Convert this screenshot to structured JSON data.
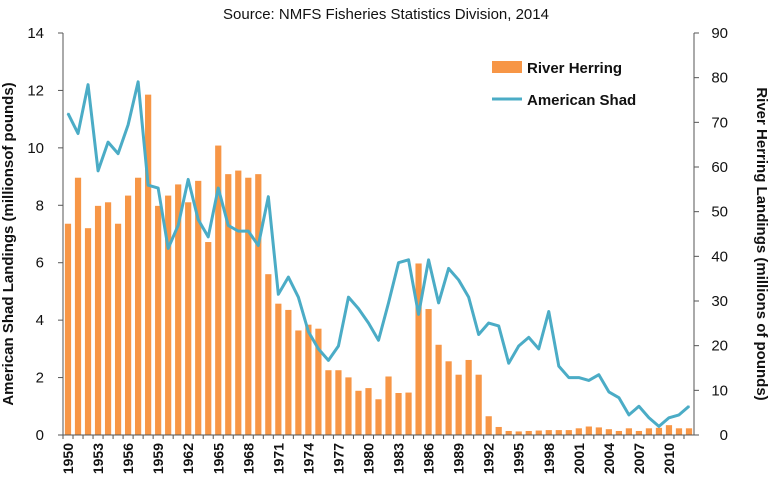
{
  "chart_data": {
    "type": "bar+line",
    "title": "Source: NMFS Fisheries Statistics Division, 2014",
    "ylabel_left": "American Shad Landings (millionsof pounds)",
    "ylabel_right": "River Herring Landings (millions of pounds)",
    "ylim_left": [
      0,
      14
    ],
    "ylim_right": [
      0,
      90
    ],
    "yticks_left": [
      "0",
      "2",
      "4",
      "6",
      "8",
      "10",
      "12",
      "14"
    ],
    "yticks_right": [
      "0",
      "10",
      "20",
      "30",
      "40",
      "50",
      "60",
      "70",
      "80",
      "90"
    ],
    "x": [
      1950,
      1951,
      1952,
      1953,
      1954,
      1955,
      1956,
      1957,
      1958,
      1959,
      1960,
      1961,
      1962,
      1963,
      1964,
      1965,
      1966,
      1967,
      1968,
      1969,
      1970,
      1971,
      1972,
      1973,
      1974,
      1975,
      1976,
      1977,
      1978,
      1979,
      1980,
      1981,
      1982,
      1983,
      1984,
      1985,
      1986,
      1987,
      1988,
      1989,
      1990,
      1991,
      1992,
      1993,
      1994,
      1995,
      1996,
      1997,
      1998,
      1999,
      2000,
      2001,
      2002,
      2003,
      2004,
      2005,
      2006,
      2007,
      2008,
      2009,
      2010,
      2011,
      2012
    ],
    "xtick_labels": [
      "1950",
      "1953",
      "1956",
      "1959",
      "1962",
      "1965",
      "1968",
      "1971",
      "1974",
      "1977",
      "1980",
      "1983",
      "1986",
      "1989",
      "1992",
      "1995",
      "1998",
      "2001",
      "2004",
      "2007",
      "2010"
    ],
    "grid": false,
    "legend": "top-right",
    "series": [
      {
        "name": "River Herring",
        "type": "bar",
        "axis": "right",
        "color": "#F79646",
        "values": [
          47.3,
          57.6,
          46.3,
          51.3,
          52.1,
          47.3,
          53.6,
          57.6,
          76.2,
          51.3,
          53.6,
          56.1,
          52.1,
          56.9,
          43.2,
          64.8,
          58.4,
          59.2,
          57.6,
          58.4,
          36.0,
          29.4,
          28.0,
          23.4,
          24.7,
          23.8,
          14.5,
          14.5,
          12.9,
          9.9,
          10.5,
          8.0,
          13.1,
          9.4,
          9.5,
          38.4,
          28.2,
          20.2,
          16.5,
          13.5,
          16.8,
          13.5,
          4.2,
          1.8,
          0.9,
          0.8,
          0.9,
          1.0,
          1.1,
          1.1,
          1.1,
          1.5,
          1.9,
          1.7,
          1.3,
          0.9,
          1.5,
          0.9,
          1.5,
          1.6,
          2.2,
          1.5,
          1.5
        ]
      },
      {
        "name": "American Shad",
        "type": "line",
        "axis": "left",
        "color": "#4BACC6",
        "values": [
          11.2,
          10.5,
          12.2,
          9.2,
          10.2,
          9.8,
          10.8,
          12.3,
          8.7,
          8.6,
          6.5,
          7.3,
          8.9,
          7.5,
          6.9,
          8.6,
          7.3,
          7.1,
          7.1,
          6.6,
          8.3,
          4.9,
          5.5,
          4.8,
          3.6,
          3.0,
          2.6,
          3.1,
          4.8,
          4.4,
          3.9,
          3.3,
          4.6,
          6.0,
          6.1,
          4.2,
          6.1,
          4.6,
          5.8,
          5.4,
          4.8,
          3.5,
          3.9,
          3.8,
          2.5,
          3.1,
          3.4,
          3.0,
          4.3,
          2.4,
          2.0,
          2.0,
          1.9,
          2.1,
          1.5,
          1.3,
          0.7,
          1.0,
          0.6,
          0.3,
          0.6,
          0.7,
          1.0
        ]
      }
    ]
  }
}
